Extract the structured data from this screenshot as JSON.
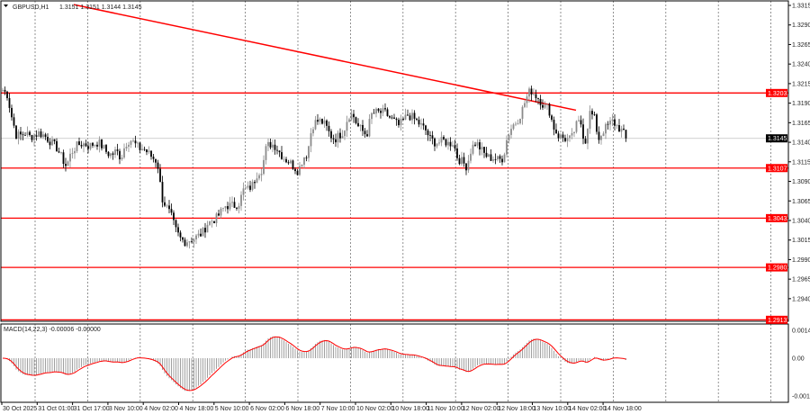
{
  "header": {
    "symbol": "GBPUSD,H1",
    "ohlc": "1.3151 1.3151 1.3144 1.3145"
  },
  "macd": {
    "label": "MACD(14,22,3) -0.00006 -0.00000",
    "axis": [
      "0.00143",
      "0.00",
      "-0.00184"
    ]
  },
  "colors": {
    "level": "#ff0000",
    "trendline": "#ff0000",
    "bull": "#8a8a8a",
    "bear": "#000000",
    "signal": "#ff0000",
    "histogram": "#a0a0a0"
  },
  "chart_data": {
    "type": "candlestick",
    "timeframe": "H1",
    "ylim": [
      1.2905,
      1.3322
    ],
    "y_ticks": [
      "1.3315",
      "1.3290",
      "1.3265",
      "1.3240",
      "1.3215",
      "1.3190",
      "1.3165",
      "1.3140",
      "1.3115",
      "1.3090",
      "1.3065",
      "1.3040",
      "1.3015",
      "1.2990",
      "1.2965",
      "1.2940"
    ],
    "x_ticks": [
      "30 Oct 2025",
      "31 Oct 01:00",
      "31 Oct 17:00",
      "3 Nov 10:00",
      "4 Nov 02:00",
      "4 Nov 18:00",
      "5 Nov 10:00",
      "6 Nov 02:00",
      "6 Nov 18:00",
      "7 Nov 10:00",
      "10 Nov 02:00",
      "10 Nov 18:00",
      "11 Nov 10:00",
      "12 Nov 02:00",
      "12 Nov 18:00",
      "13 Nov 10:00",
      "14 Nov 02:00",
      "14 Nov 18:00"
    ],
    "current_price": "1.3145",
    "levels": [
      "1.3203",
      "1.3107",
      "1.3043",
      "1.2980",
      "1.2913"
    ],
    "trendline": {
      "from": 1.3316,
      "to": 1.3181
    },
    "closes": [
      1.3207,
      1.3201,
      1.3172,
      1.3149,
      1.3149,
      1.3152,
      1.3147,
      1.3149,
      1.3152,
      1.3149,
      1.3144,
      1.3138,
      1.3132,
      1.312,
      1.3109,
      1.3126,
      1.3134,
      1.3138,
      1.3138,
      1.3135,
      1.3138,
      1.314,
      1.3134,
      1.3126,
      1.3124,
      1.3129,
      1.312,
      1.3138,
      1.3144,
      1.3138,
      1.3132,
      1.3132,
      1.3126,
      1.312,
      1.3115,
      1.3069,
      1.3057,
      1.3046,
      1.3028,
      1.3017,
      1.3013,
      1.3015,
      1.3017,
      1.302,
      1.3025,
      1.3036,
      1.304,
      1.3043,
      1.3051,
      1.3059,
      1.3059,
      1.3059,
      1.3063,
      1.308,
      1.308,
      1.3086,
      1.3101,
      1.3106,
      1.3135,
      1.3138,
      1.3135,
      1.3126,
      1.3119,
      1.3115,
      1.3109,
      1.3103,
      1.312,
      1.3126,
      1.3161,
      1.3167,
      1.3167,
      1.3161,
      1.3149,
      1.3144,
      1.3149,
      1.3155,
      1.3175,
      1.3175,
      1.3161,
      1.3155,
      1.3149,
      1.3175,
      1.3178,
      1.3178,
      1.3178,
      1.3172,
      1.3167,
      1.3161,
      1.3167,
      1.3175,
      1.3172,
      1.3167,
      1.3161,
      1.3155,
      1.3144,
      1.314,
      1.314,
      1.3142,
      1.3138,
      1.314,
      1.312,
      1.3115,
      1.3109,
      1.3132,
      1.314,
      1.3132,
      1.3124,
      1.312,
      1.312,
      1.3117,
      1.312,
      1.3149,
      1.3161,
      1.3167,
      1.3178,
      1.3195,
      1.3207,
      1.3201,
      1.3195,
      1.3186,
      1.3184,
      1.3161,
      1.3149,
      1.3146,
      1.3144,
      1.3144,
      1.3161,
      1.3167,
      1.3138,
      1.3178,
      1.3172,
      1.3144,
      1.3155,
      1.3161,
      1.3167,
      1.3161,
      1.3155,
      1.3146
    ]
  }
}
